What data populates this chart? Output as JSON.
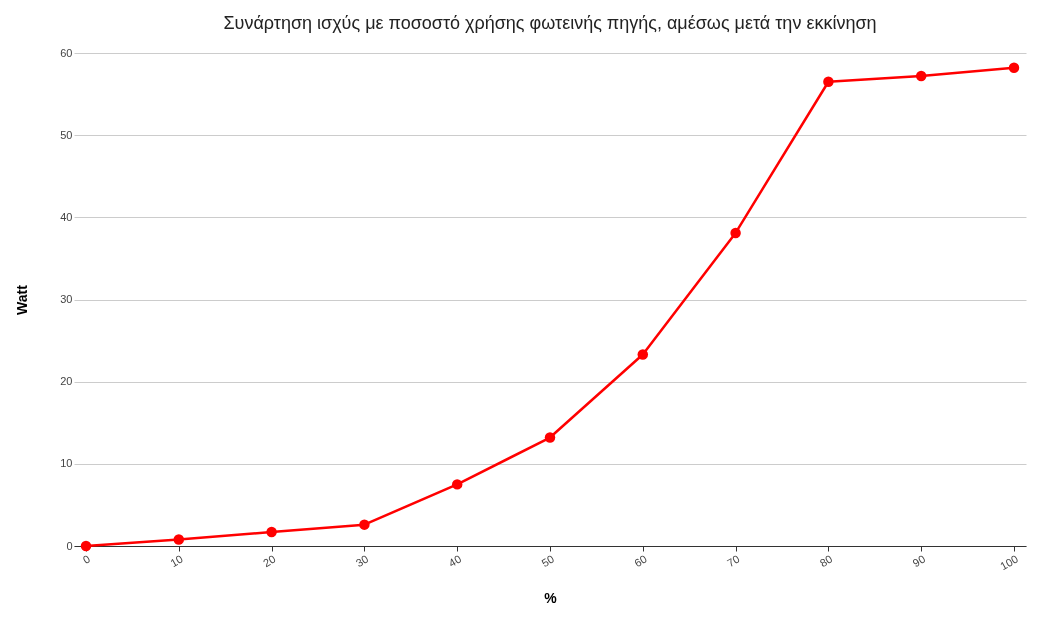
{
  "chart_data": {
    "type": "line",
    "title": "Συνάρτηση ισχύς με ποσοστό χρήσης φωτεινής πηγής, αμέσως μετά την εκκίνηση",
    "xlabel": "%",
    "ylabel": "Watt",
    "categories": [
      "0",
      "10",
      "20",
      "30",
      "40",
      "50",
      "60",
      "70",
      "80",
      "90",
      "100"
    ],
    "series": [
      {
        "color": "#ff0000",
        "values": [
          0,
          0.8,
          1.7,
          2.6,
          7.5,
          13.2,
          23.3,
          38.1,
          56.5,
          57.2,
          58.2
        ]
      }
    ],
    "ylim": [
      0,
      60
    ],
    "yticks": [
      0,
      10,
      20,
      30,
      40,
      50,
      60
    ],
    "grid": "y",
    "marker": "circle",
    "line_style": "solid"
  }
}
